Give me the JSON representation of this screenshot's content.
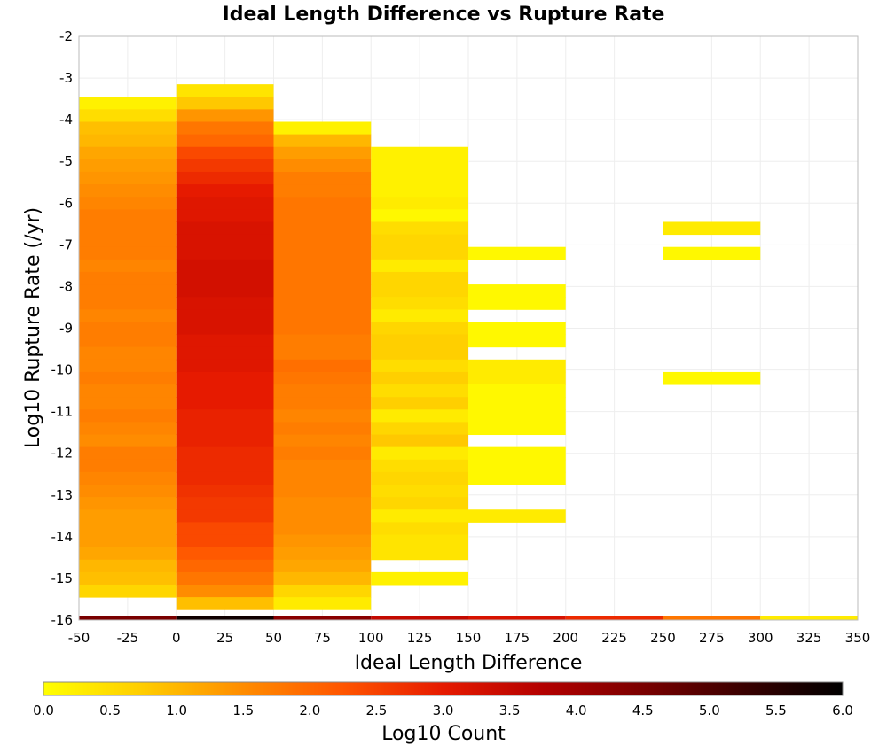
{
  "chart_data": {
    "type": "heatmap",
    "title": "Ideal Length Difference vs Rupture Rate",
    "xlabel": "Ideal Length Difference",
    "ylabel": "Log10 Rupture Rate (/yr)",
    "xlim": [
      -50,
      350
    ],
    "ylim": [
      -16,
      -2
    ],
    "x_ticks": [
      "-50",
      "-25",
      "0",
      "25",
      "50",
      "75",
      "100",
      "125",
      "150",
      "175",
      "200",
      "225",
      "250",
      "275",
      "300",
      "325",
      "350"
    ],
    "y_ticks": [
      "-2",
      "-3",
      "-4",
      "-5",
      "-6",
      "-7",
      "-8",
      "-9",
      "-10",
      "-11",
      "-12",
      "-13",
      "-14",
      "-15",
      "-16"
    ],
    "grid": true,
    "colorbar": {
      "label": "Log10 Count",
      "range": [
        0,
        6
      ],
      "ticks": [
        "0.0",
        "0.5",
        "1.0",
        "1.5",
        "2.0",
        "2.5",
        "3.0",
        "3.5",
        "4.0",
        "4.5",
        "5.0",
        "5.5",
        "6.0"
      ],
      "colormap": [
        "#ffff00",
        "#ffcc00",
        "#ff8c00",
        "#ff5500",
        "#e61a00",
        "#b30000",
        "#7a0000",
        "#3a0000",
        "#000000"
      ]
    },
    "x_bin_width": 50,
    "y_bin_height": 0.3,
    "columns": [
      {
        "x0": -50,
        "x1": 0,
        "cells": [
          [
            -3.6,
            0.2
          ],
          [
            -3.9,
            0.5
          ],
          [
            -4.2,
            0.9
          ],
          [
            -4.5,
            1.0
          ],
          [
            -4.8,
            1.2
          ],
          [
            -5.1,
            1.3
          ],
          [
            -5.4,
            1.4
          ],
          [
            -5.7,
            1.5
          ],
          [
            -6.0,
            1.6
          ],
          [
            -6.3,
            1.7
          ],
          [
            -6.6,
            1.7
          ],
          [
            -6.9,
            1.7
          ],
          [
            -7.2,
            1.7
          ],
          [
            -7.5,
            1.6
          ],
          [
            -7.8,
            1.7
          ],
          [
            -8.1,
            1.7
          ],
          [
            -8.4,
            1.7
          ],
          [
            -8.7,
            1.6
          ],
          [
            -9.0,
            1.7
          ],
          [
            -9.3,
            1.7
          ],
          [
            -9.6,
            1.6
          ],
          [
            -9.9,
            1.6
          ],
          [
            -10.2,
            1.7
          ],
          [
            -10.5,
            1.6
          ],
          [
            -10.8,
            1.6
          ],
          [
            -11.1,
            1.7
          ],
          [
            -11.4,
            1.6
          ],
          [
            -11.7,
            1.5
          ],
          [
            -12.0,
            1.7
          ],
          [
            -12.3,
            1.7
          ],
          [
            -12.6,
            1.6
          ],
          [
            -12.9,
            1.5
          ],
          [
            -13.2,
            1.4
          ],
          [
            -13.5,
            1.3
          ],
          [
            -13.8,
            1.3
          ],
          [
            -14.1,
            1.3
          ],
          [
            -14.4,
            1.2
          ],
          [
            -14.7,
            1.0
          ],
          [
            -15.0,
            0.9
          ],
          [
            -15.3,
            0.6
          ]
        ]
      },
      {
        "x0": 0,
        "x1": 50,
        "cells": [
          [
            -3.3,
            0.4
          ],
          [
            -3.6,
            0.8
          ],
          [
            -3.9,
            1.4
          ],
          [
            -4.2,
            1.8
          ],
          [
            -4.5,
            2.0
          ],
          [
            -4.8,
            2.4
          ],
          [
            -5.1,
            2.6
          ],
          [
            -5.4,
            2.8
          ],
          [
            -5.7,
            3.0
          ],
          [
            -6.0,
            3.1
          ],
          [
            -6.3,
            3.1
          ],
          [
            -6.6,
            3.2
          ],
          [
            -6.9,
            3.2
          ],
          [
            -7.2,
            3.2
          ],
          [
            -7.5,
            3.3
          ],
          [
            -7.8,
            3.3
          ],
          [
            -8.1,
            3.3
          ],
          [
            -8.4,
            3.2
          ],
          [
            -8.7,
            3.2
          ],
          [
            -9.0,
            3.2
          ],
          [
            -9.3,
            3.1
          ],
          [
            -9.6,
            3.1
          ],
          [
            -9.9,
            3.1
          ],
          [
            -10.2,
            3.0
          ],
          [
            -10.5,
            3.0
          ],
          [
            -10.8,
            3.0
          ],
          [
            -11.1,
            2.9
          ],
          [
            -11.4,
            2.9
          ],
          [
            -11.7,
            2.9
          ],
          [
            -12.0,
            2.8
          ],
          [
            -12.3,
            2.8
          ],
          [
            -12.6,
            2.8
          ],
          [
            -12.9,
            2.7
          ],
          [
            -13.2,
            2.6
          ],
          [
            -13.5,
            2.6
          ],
          [
            -13.8,
            2.4
          ],
          [
            -14.1,
            2.4
          ],
          [
            -14.4,
            2.2
          ],
          [
            -14.7,
            2.0
          ],
          [
            -15.0,
            1.8
          ],
          [
            -15.3,
            1.5
          ],
          [
            -15.6,
            0.9
          ]
        ]
      },
      {
        "x0": 50,
        "x1": 100,
        "cells": [
          [
            -4.2,
            0.2
          ],
          [
            -4.5,
            1.0
          ],
          [
            -4.8,
            1.3
          ],
          [
            -5.1,
            1.5
          ],
          [
            -5.4,
            1.7
          ],
          [
            -5.7,
            1.7
          ],
          [
            -6.0,
            1.8
          ],
          [
            -6.3,
            1.8
          ],
          [
            -6.6,
            1.8
          ],
          [
            -6.9,
            1.8
          ],
          [
            -7.2,
            1.8
          ],
          [
            -7.5,
            1.8
          ],
          [
            -7.8,
            1.8
          ],
          [
            -8.1,
            1.8
          ],
          [
            -8.4,
            1.8
          ],
          [
            -8.7,
            1.8
          ],
          [
            -9.0,
            1.8
          ],
          [
            -9.3,
            1.7
          ],
          [
            -9.6,
            1.7
          ],
          [
            -9.9,
            1.9
          ],
          [
            -10.2,
            1.8
          ],
          [
            -10.5,
            1.7
          ],
          [
            -10.8,
            1.7
          ],
          [
            -11.1,
            1.6
          ],
          [
            -11.4,
            1.7
          ],
          [
            -11.7,
            1.6
          ],
          [
            -12.0,
            1.7
          ],
          [
            -12.3,
            1.6
          ],
          [
            -12.6,
            1.6
          ],
          [
            -12.9,
            1.6
          ],
          [
            -13.2,
            1.5
          ],
          [
            -13.5,
            1.5
          ],
          [
            -13.8,
            1.5
          ],
          [
            -14.1,
            1.4
          ],
          [
            -14.4,
            1.3
          ],
          [
            -14.7,
            1.2
          ],
          [
            -15.0,
            1.0
          ],
          [
            -15.3,
            0.6
          ],
          [
            -15.6,
            0.3
          ]
        ]
      },
      {
        "x0": 100,
        "x1": 150,
        "cells": [
          [
            -4.8,
            0.2
          ],
          [
            -5.1,
            0.2
          ],
          [
            -5.4,
            0.2
          ],
          [
            -5.7,
            0.2
          ],
          [
            -6.0,
            0.3
          ],
          [
            -6.3,
            0.1
          ],
          [
            -6.6,
            0.5
          ],
          [
            -6.9,
            0.6
          ],
          [
            -7.2,
            0.6
          ],
          [
            -7.5,
            0.3
          ],
          [
            -7.8,
            0.6
          ],
          [
            -8.1,
            0.6
          ],
          [
            -8.4,
            0.5
          ],
          [
            -8.7,
            0.3
          ],
          [
            -9.0,
            0.6
          ],
          [
            -9.3,
            0.7
          ],
          [
            -9.6,
            0.7
          ],
          [
            -9.9,
            0.5
          ],
          [
            -10.2,
            0.7
          ],
          [
            -10.5,
            0.5
          ],
          [
            -10.8,
            0.7
          ],
          [
            -11.1,
            0.3
          ],
          [
            -11.4,
            0.6
          ],
          [
            -11.7,
            0.8
          ],
          [
            -12.0,
            0.3
          ],
          [
            -12.3,
            0.5
          ],
          [
            -12.6,
            0.6
          ],
          [
            -12.9,
            0.5
          ],
          [
            -13.2,
            0.6
          ],
          [
            -13.5,
            0.3
          ],
          [
            -13.8,
            0.5
          ],
          [
            -14.1,
            0.4
          ],
          [
            -14.4,
            0.4
          ],
          [
            -15.0,
            0.2
          ]
        ]
      },
      {
        "x0": 150,
        "x1": 200,
        "cells": [
          [
            -7.2,
            0.1
          ],
          [
            -8.1,
            0.1
          ],
          [
            -8.4,
            0.1
          ],
          [
            -9.0,
            0.1
          ],
          [
            -9.3,
            0.1
          ],
          [
            -9.9,
            0.3
          ],
          [
            -10.2,
            0.3
          ],
          [
            -10.5,
            0.1
          ],
          [
            -10.8,
            0.1
          ],
          [
            -11.1,
            0.1
          ],
          [
            -11.4,
            0.1
          ],
          [
            -12.0,
            0.1
          ],
          [
            -12.3,
            0.1
          ],
          [
            -12.6,
            0.1
          ],
          [
            -13.5,
            0.3
          ]
        ]
      },
      {
        "x0": 250,
        "x1": 300,
        "cells": [
          [
            -6.6,
            0.3
          ],
          [
            -7.2,
            0.1
          ],
          [
            -10.2,
            0.1
          ]
        ]
      }
    ],
    "bottom_strip": {
      "y": -16,
      "values": [
        4.5,
        5.8,
        4.3,
        3.5,
        3.2,
        2.8,
        1.8,
        0.3
      ]
    }
  }
}
